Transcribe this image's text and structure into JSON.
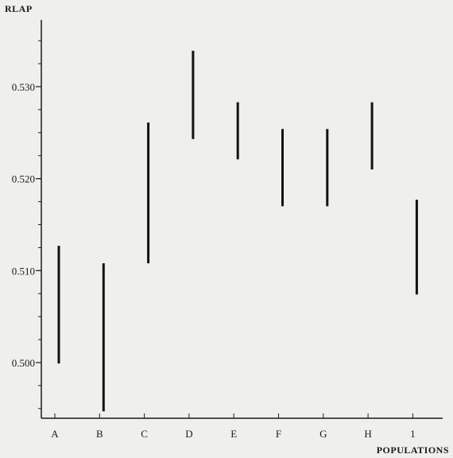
{
  "chart_data": {
    "type": "range",
    "title": "",
    "ylabel": "RLAP",
    "xlabel": "POPULATIONS",
    "categories": [
      "A",
      "B",
      "C",
      "D",
      "E",
      "F",
      "G",
      "H",
      "1"
    ],
    "ranges": [
      {
        "category": "A",
        "low": 0.4999,
        "high": 0.5127
      },
      {
        "category": "B",
        "low": 0.4947,
        "high": 0.5108
      },
      {
        "category": "C",
        "low": 0.5108,
        "high": 0.5261
      },
      {
        "category": "D",
        "low": 0.5243,
        "high": 0.5339
      },
      {
        "category": "E",
        "low": 0.5221,
        "high": 0.5283
      },
      {
        "category": "F",
        "low": 0.517,
        "high": 0.5254
      },
      {
        "category": "G",
        "low": 0.517,
        "high": 0.5254
      },
      {
        "category": "H",
        "low": 0.521,
        "high": 0.5283
      },
      {
        "category": "1",
        "low": 0.5074,
        "high": 0.5177
      }
    ],
    "yticks": [
      "0.500",
      "0.510",
      "0.520",
      "0.530"
    ],
    "ylim": [
      0.4945,
      0.5375
    ],
    "grid": false,
    "legend": "none"
  }
}
